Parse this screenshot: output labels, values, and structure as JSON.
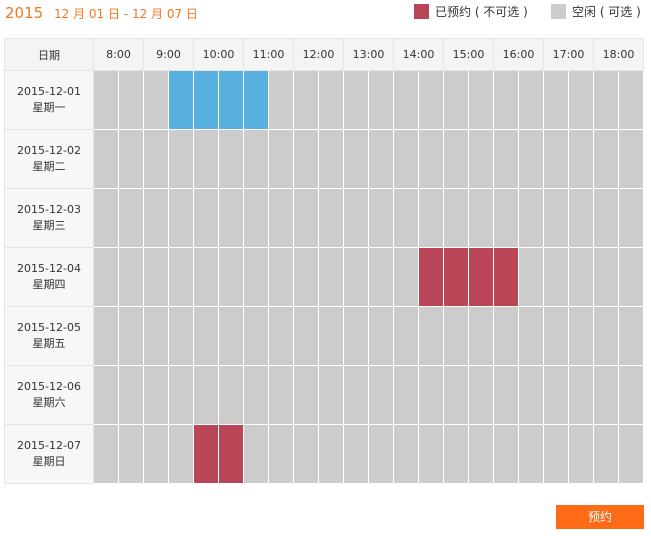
{
  "header": {
    "year": "2015",
    "range": "12 月 01 日 - 12 月 07 日"
  },
  "legend": {
    "booked_label": "已预约 ( 不可选 )",
    "free_label": "空闲 ( 可选 )",
    "booked_color": "#b94656",
    "free_color": "#cccccc",
    "selected_color": "#58b0de"
  },
  "grid": {
    "date_header": "日期",
    "hours": [
      "8:00",
      "9:00",
      "10:00",
      "11:00",
      "12:00",
      "13:00",
      "14:00",
      "15:00",
      "16:00",
      "17:00",
      "18:00"
    ],
    "slots_per_row": 22,
    "rows": [
      {
        "date": "2015-12-01",
        "weekday": "星期一",
        "booked": [],
        "selected": [
          3,
          4,
          5,
          6
        ]
      },
      {
        "date": "2015-12-02",
        "weekday": "星期二",
        "booked": [],
        "selected": []
      },
      {
        "date": "2015-12-03",
        "weekday": "星期三",
        "booked": [],
        "selected": []
      },
      {
        "date": "2015-12-04",
        "weekday": "星期四",
        "booked": [
          13,
          14,
          15,
          16
        ],
        "selected": []
      },
      {
        "date": "2015-12-05",
        "weekday": "星期五",
        "booked": [],
        "selected": []
      },
      {
        "date": "2015-12-06",
        "weekday": "星期六",
        "booked": [],
        "selected": []
      },
      {
        "date": "2015-12-07",
        "weekday": "星期日",
        "booked": [
          4,
          5
        ],
        "selected": []
      }
    ]
  },
  "actions": {
    "reserve_label": "预约"
  }
}
